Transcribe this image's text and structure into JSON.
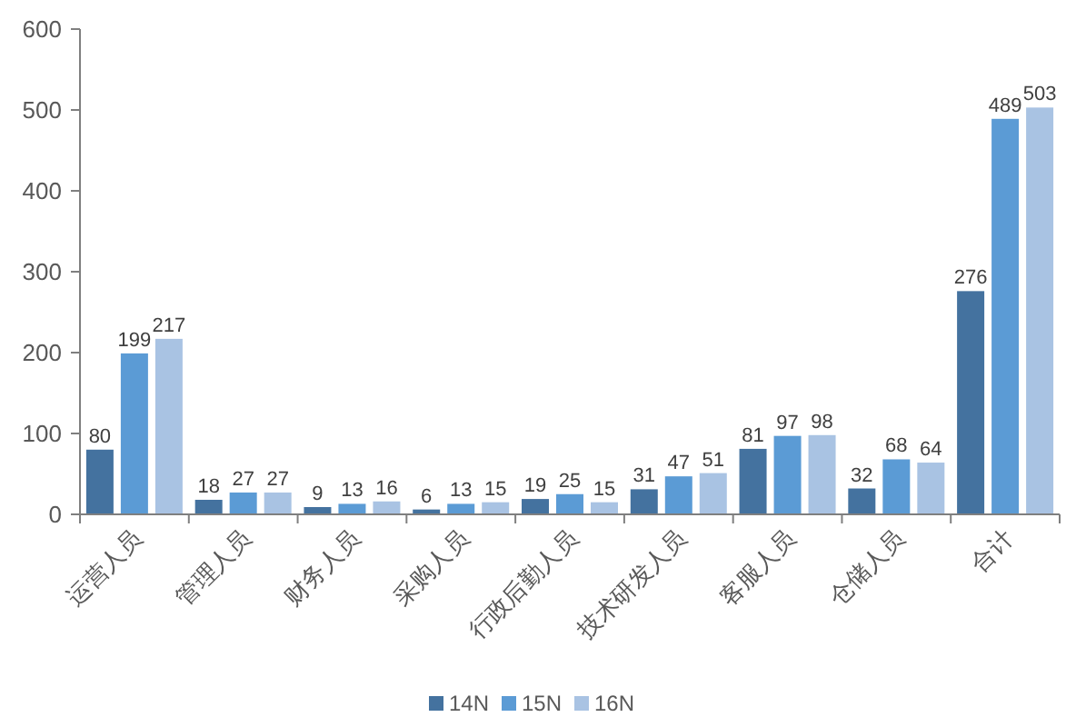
{
  "chart_data": {
    "type": "bar",
    "categories": [
      "运营人员",
      "管理人员",
      "财务人员",
      "采购人员",
      "行政后勤人员",
      "技术研发人员",
      "客服人员",
      "仓储人员",
      "合计"
    ],
    "series": [
      {
        "name": "14N",
        "color": "#44729f",
        "values": [
          80,
          18,
          9,
          6,
          19,
          31,
          81,
          32,
          276
        ]
      },
      {
        "name": "15N",
        "color": "#5b9bd5",
        "values": [
          199,
          27,
          13,
          13,
          25,
          47,
          97,
          68,
          489
        ]
      },
      {
        "name": "16N",
        "color": "#a9c3e3",
        "values": [
          217,
          27,
          16,
          15,
          15,
          51,
          98,
          64,
          503
        ]
      }
    ],
    "ylim": [
      0,
      600
    ],
    "yticks": [
      0,
      100,
      200,
      300,
      400,
      500,
      600
    ],
    "data_labels": true,
    "legend": "bottom",
    "grid": false
  }
}
